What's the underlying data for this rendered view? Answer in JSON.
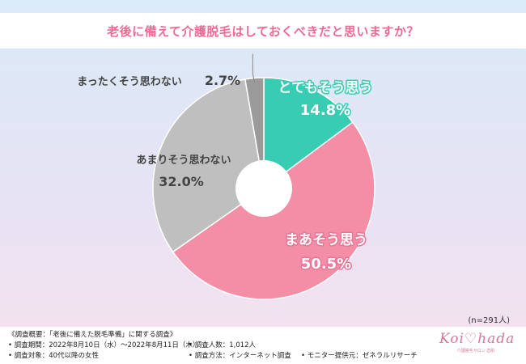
{
  "chart_data": {
    "type": "pie",
    "title": "老後に備えて介護脱毛はしておくべきだと思いますか？",
    "categories": [
      "とてもそう思う",
      "まあそう思う",
      "あまりそう思わない",
      "まったくそう思わない"
    ],
    "values": [
      14.8,
      50.5,
      32.0,
      2.7
    ],
    "value_labels": [
      "14.8%",
      "50.5%",
      "32.0%",
      "2.7%"
    ],
    "colors": [
      "#36cdb3",
      "#f48ea6",
      "#bfbfbf",
      "#9b9b9b"
    ],
    "sample_size": "(n=291人)"
  },
  "footer": {
    "overview": "《調査概要：「老後に備えた脱毛準備」に関する調査》",
    "period": "• 調査期間：2022年8月10日（水）～2022年8月11日（木）",
    "people": "• 調査人数：1,012人",
    "target": "• 調査対象：40代以降の女性",
    "method": "• 調査方法：インターネット調査",
    "provider": "• モニター提供元：ゼネラルリサーチ"
  },
  "logo": {
    "main": "Koi♡hada",
    "sub": "介護脱毛サロン 恋肌"
  }
}
